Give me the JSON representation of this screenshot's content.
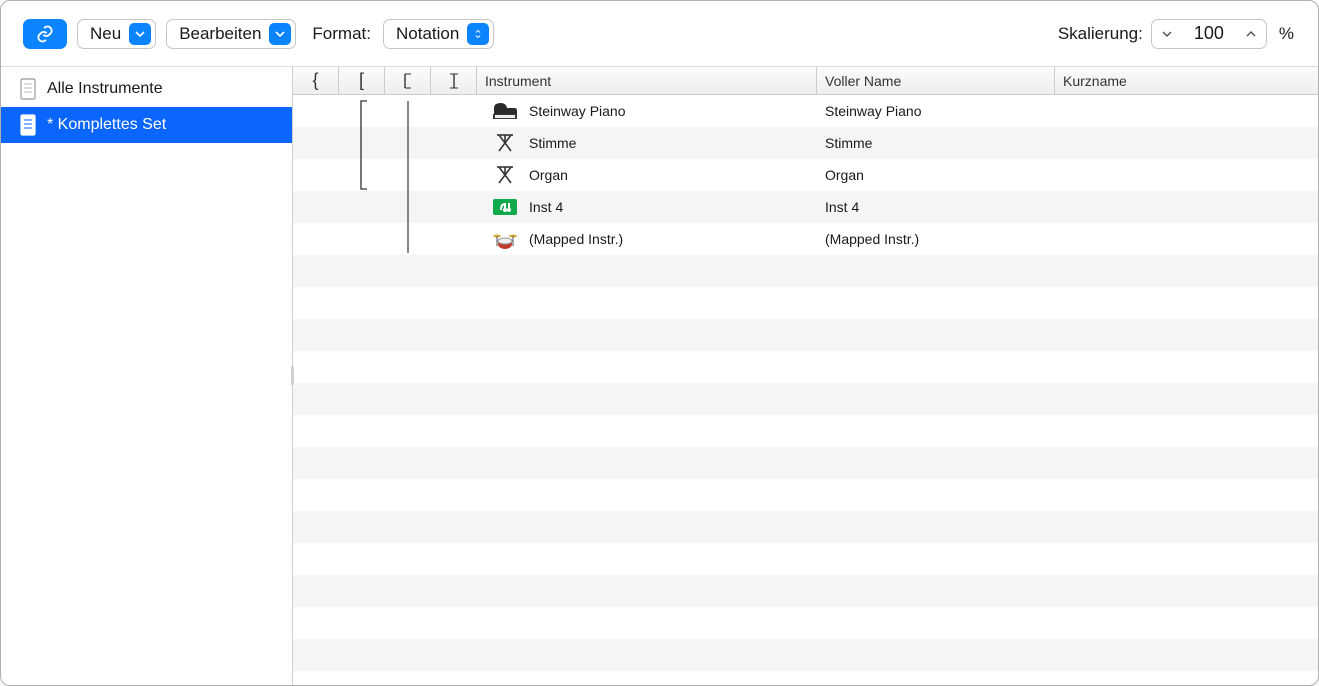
{
  "toolbar": {
    "neu_label": "Neu",
    "bearbeiten_label": "Bearbeiten",
    "format_label": "Format:",
    "format_value": "Notation",
    "scale_label": "Skalierung:",
    "scale_value": "100",
    "scale_unit": "%"
  },
  "sidebar": {
    "items": [
      {
        "label": "Alle Instrumente",
        "selected": false
      },
      {
        "label": "* Komplettes Set",
        "selected": true
      }
    ]
  },
  "columns": {
    "bracket_glyphs": [
      "{",
      "[",
      "𝄔",
      "𝄕"
    ],
    "instrument": "Instrument",
    "full_name": "Voller Name",
    "short_name": "Kurzname"
  },
  "rows": [
    {
      "icon": "piano",
      "instrument": "Steinway Piano",
      "full_name": "Steinway Piano",
      "short_name": ""
    },
    {
      "icon": "stand",
      "instrument": "Stimme",
      "full_name": "Stimme",
      "short_name": ""
    },
    {
      "icon": "stand",
      "instrument": "Organ",
      "full_name": "Organ",
      "short_name": ""
    },
    {
      "icon": "plugin",
      "instrument": "Inst 4",
      "full_name": "Inst 4",
      "short_name": ""
    },
    {
      "icon": "drums",
      "instrument": "(Mapped Instr.)",
      "full_name": "(Mapped Instr.)",
      "short_name": ""
    }
  ],
  "empty_rows": 13,
  "colors": {
    "blue": "#0a84ff",
    "selection": "#0a66ff",
    "plugin_bg": "#0fa84a"
  }
}
